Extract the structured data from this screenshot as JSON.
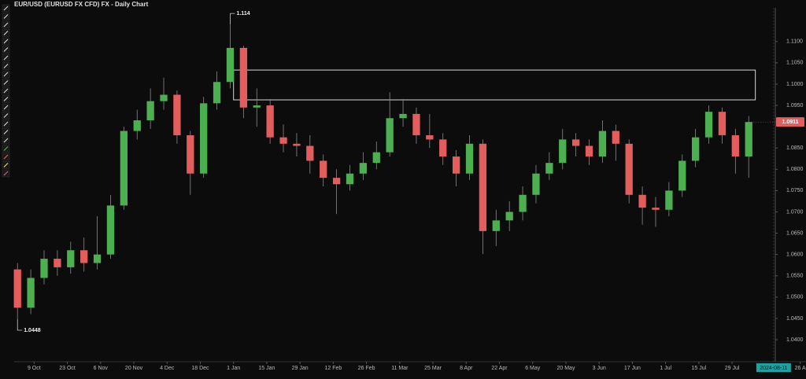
{
  "chart_data": {
    "type": "candlestick",
    "title": "EUR/USD (EURUSD FX CFD) FX - Daily Chart",
    "x": [
      0,
      4,
      8,
      12,
      16,
      20,
      24,
      28,
      32,
      36,
      40,
      44,
      48,
      52,
      56,
      60,
      64,
      68,
      72,
      76,
      80,
      84,
      88,
      92,
      96,
      100,
      104,
      108,
      112,
      116,
      120,
      124,
      128,
      132,
      136,
      140,
      144,
      148,
      152,
      156,
      160,
      164,
      168,
      172,
      176,
      180,
      184,
      188,
      192,
      196,
      200,
      204,
      208,
      212,
      216,
      220
    ],
    "open": [
      1.0565,
      1.0475,
      1.0545,
      1.059,
      1.057,
      1.061,
      1.058,
      1.06,
      1.0715,
      1.089,
      1.0915,
      1.096,
      1.0975,
      1.088,
      1.079,
      1.0955,
      1.1005,
      1.1085,
      1.0945,
      1.095,
      1.0875,
      1.086,
      1.0855,
      1.082,
      1.078,
      1.0765,
      1.079,
      1.0815,
      1.084,
      1.092,
      1.093,
      1.088,
      1.087,
      1.083,
      1.079,
      1.086,
      1.0655,
      1.068,
      1.07,
      1.074,
      1.079,
      1.0815,
      1.087,
      1.0855,
      1.083,
      1.089,
      1.086,
      1.074,
      1.071,
      1.0705,
      1.075,
      1.082,
      1.0875,
      1.0935,
      1.088,
      1.083
    ],
    "high": [
      1.058,
      1.0565,
      1.061,
      1.061,
      1.063,
      1.064,
      1.069,
      1.074,
      1.09,
      1.094,
      1.099,
      1.1015,
      1.0985,
      1.089,
      1.097,
      1.103,
      1.114,
      1.109,
      1.099,
      1.0965,
      1.0905,
      1.0885,
      1.088,
      1.0835,
      1.08,
      1.081,
      1.084,
      1.0865,
      1.0981,
      1.0965,
      1.0945,
      1.093,
      1.0885,
      1.0845,
      1.088,
      1.087,
      1.0705,
      1.0725,
      1.076,
      1.081,
      1.084,
      1.0895,
      1.0885,
      1.087,
      1.0915,
      1.0905,
      1.087,
      1.076,
      1.0735,
      1.077,
      1.0835,
      1.0895,
      1.095,
      1.0945,
      1.0895,
      1.0925
    ],
    "low": [
      1.0448,
      1.046,
      1.053,
      1.055,
      1.0555,
      1.056,
      1.0565,
      1.059,
      1.0705,
      1.087,
      1.0895,
      1.094,
      1.086,
      1.074,
      1.078,
      1.094,
      1.099,
      1.092,
      1.09,
      1.086,
      1.084,
      1.083,
      1.079,
      1.076,
      1.0695,
      1.075,
      1.0775,
      1.08,
      1.083,
      1.09,
      1.086,
      1.085,
      1.081,
      1.076,
      1.0775,
      1.0601,
      1.062,
      1.0655,
      1.068,
      1.072,
      1.0775,
      1.08,
      1.083,
      1.081,
      1.0815,
      1.082,
      1.072,
      1.067,
      1.0665,
      1.069,
      1.0735,
      1.0805,
      1.086,
      1.086,
      1.079,
      1.078
    ],
    "close": [
      1.0475,
      1.0545,
      1.059,
      1.057,
      1.061,
      1.058,
      1.06,
      1.0715,
      1.089,
      1.0915,
      1.096,
      1.0975,
      1.088,
      1.079,
      1.0955,
      1.1005,
      1.1085,
      1.0945,
      1.095,
      1.0875,
      1.086,
      1.0855,
      1.082,
      1.078,
      1.0765,
      1.079,
      1.0815,
      1.084,
      1.092,
      1.093,
      1.088,
      1.087,
      1.083,
      1.079,
      1.086,
      1.0655,
      1.068,
      1.07,
      1.074,
      1.079,
      1.0815,
      1.087,
      1.0855,
      1.083,
      1.089,
      1.086,
      1.074,
      1.071,
      1.0705,
      1.075,
      1.082,
      1.0875,
      1.0935,
      1.088,
      1.083,
      1.0911
    ],
    "up_color": "#4caf50",
    "down_color": "#e35d5d",
    "xlim": [
      -1,
      228
    ],
    "ylim": [
      1.0352,
      1.1179
    ],
    "xticks": [
      {
        "value": 5,
        "label": "9 Oct"
      },
      {
        "value": 15,
        "label": "23 Oct"
      },
      {
        "value": 25,
        "label": "6 Nov"
      },
      {
        "value": 35,
        "label": "20 Nov"
      },
      {
        "value": 45,
        "label": "4 Dec"
      },
      {
        "value": 55,
        "label": "18 Dec"
      },
      {
        "value": 65,
        "label": "1 Jan"
      },
      {
        "value": 75,
        "label": "15 Jan"
      },
      {
        "value": 85,
        "label": "29 Jan"
      },
      {
        "value": 95,
        "label": "12 Feb"
      },
      {
        "value": 105,
        "label": "26 Feb"
      },
      {
        "value": 115,
        "label": "11 Mar"
      },
      {
        "value": 125,
        "label": "25 Mar"
      },
      {
        "value": 135,
        "label": "8 Apr"
      },
      {
        "value": 145,
        "label": "22 Apr"
      },
      {
        "value": 155,
        "label": "6 May"
      },
      {
        "value": 165,
        "label": "20 May"
      },
      {
        "value": 175,
        "label": "3 Jun"
      },
      {
        "value": 185,
        "label": "17 Jun"
      },
      {
        "value": 195,
        "label": "1 Jul"
      },
      {
        "value": 205,
        "label": "15 Jul"
      },
      {
        "value": 215,
        "label": "29 Jul"
      },
      {
        "value": 235.5,
        "label": "26 A"
      }
    ],
    "yticks": [
      {
        "value": 1.11,
        "label": "1.1100"
      },
      {
        "value": 1.105,
        "label": "1.1050"
      },
      {
        "value": 1.1,
        "label": "1.1000"
      },
      {
        "value": 1.095,
        "label": "1.0950"
      },
      {
        "value": 1.085,
        "label": "1.0850"
      },
      {
        "value": 1.08,
        "label": "1.0800"
      },
      {
        "value": 1.075,
        "label": "1.0750"
      },
      {
        "value": 1.07,
        "label": "1.0700"
      },
      {
        "value": 1.065,
        "label": "1.0650"
      },
      {
        "value": 1.06,
        "label": "1.0600"
      },
      {
        "value": 1.055,
        "label": "1.0550"
      },
      {
        "value": 1.05,
        "label": "1.0500"
      },
      {
        "value": 1.045,
        "label": "1.0450"
      },
      {
        "value": 1.04,
        "label": "1.0400"
      }
    ],
    "crosshair": {
      "x": 227.5,
      "label": "2024-08-11"
    },
    "last_price": 1.0911,
    "high_marker": {
      "x": 64,
      "value": 1.114
    },
    "low_marker": {
      "x": 0,
      "value": 1.0448
    },
    "rectangle": {
      "x": [
        65,
        222
      ],
      "y": [
        1.0963,
        1.1033
      ]
    }
  }
}
